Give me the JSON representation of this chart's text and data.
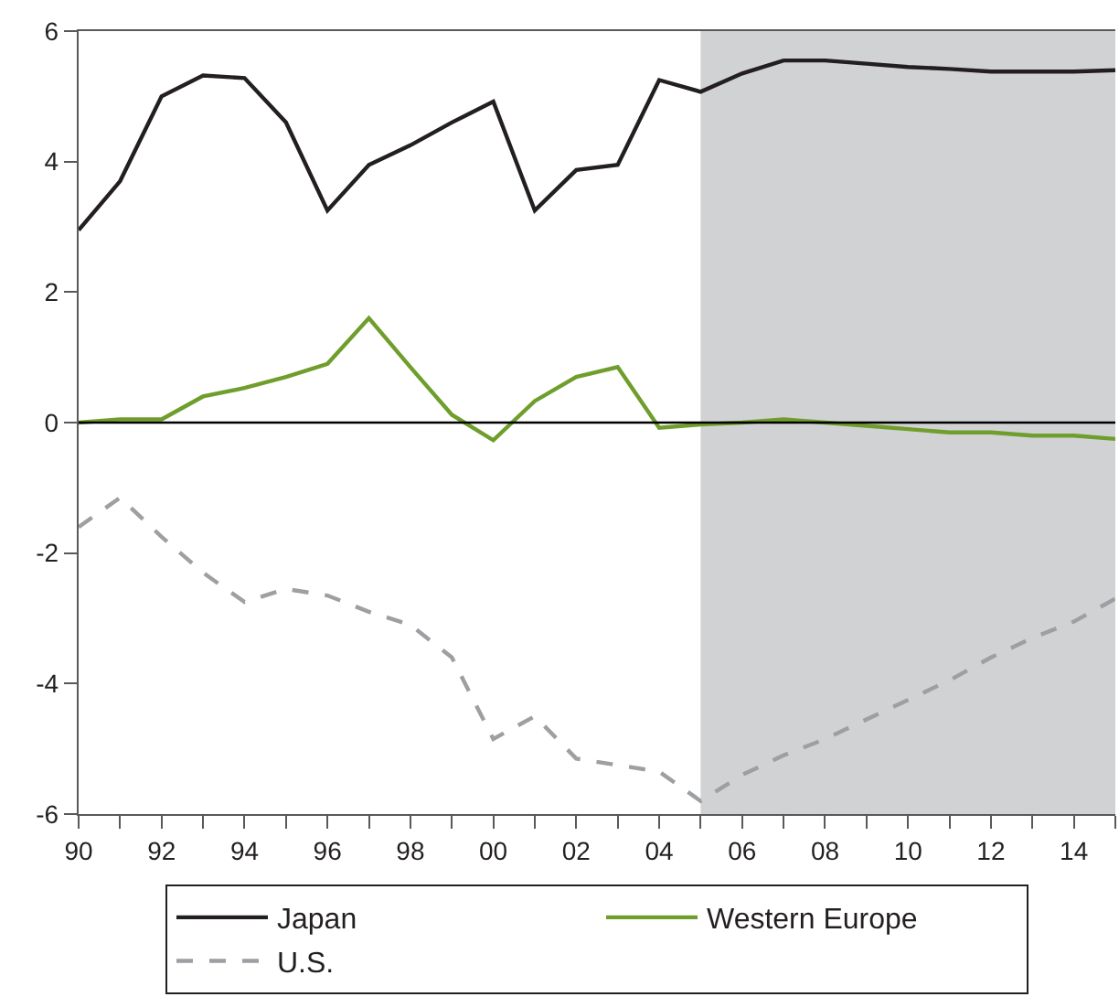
{
  "chart_data": {
    "type": "line",
    "x": [
      1990,
      1991,
      1992,
      1993,
      1994,
      1995,
      1996,
      1997,
      1998,
      1999,
      2000,
      2001,
      2002,
      2003,
      2004,
      2005,
      2006,
      2007,
      2008,
      2009,
      2010,
      2011,
      2012,
      2013,
      2014,
      2015
    ],
    "series": [
      {
        "name": "Japan",
        "color": "#231f20",
        "line_style": "solid",
        "values": [
          2.95,
          3.7,
          5.0,
          5.32,
          5.28,
          4.6,
          3.25,
          3.95,
          4.25,
          4.6,
          4.92,
          3.25,
          3.87,
          3.95,
          5.25,
          5.07,
          5.35,
          5.55,
          5.55,
          5.5,
          5.45,
          5.42,
          5.38,
          5.38,
          5.38,
          5.4
        ]
      },
      {
        "name": "Western Europe",
        "color": "#6f9e2c",
        "line_style": "solid",
        "values": [
          0,
          0.05,
          0.05,
          0.4,
          0.53,
          0.7,
          0.9,
          1.6,
          0.85,
          0.12,
          -0.27,
          0.33,
          0.7,
          0.85,
          -0.08,
          -0.03,
          0,
          0.05,
          0,
          -0.05,
          -0.1,
          -0.15,
          -0.15,
          -0.2,
          -0.2,
          -0.25
        ]
      },
      {
        "name": "U.S.",
        "color": "#9d9fa2",
        "line_style": "dashed",
        "values": [
          -1.6,
          -1.15,
          -1.75,
          -2.3,
          -2.75,
          -2.55,
          -2.65,
          -2.9,
          -3.1,
          -3.6,
          -4.85,
          -4.5,
          -5.15,
          -5.25,
          -5.35,
          -5.8,
          -5.4,
          -5.1,
          -4.85,
          -4.55,
          -4.25,
          -3.95,
          -3.6,
          -3.3,
          -3.05,
          -2.7
        ]
      }
    ],
    "xlim": [
      1990,
      2015
    ],
    "xticks": [
      {
        "value": 1990,
        "label": "90"
      },
      {
        "value": 1991,
        "label": null
      },
      {
        "value": 1992,
        "label": "92"
      },
      {
        "value": 1993,
        "label": null
      },
      {
        "value": 1994,
        "label": "94"
      },
      {
        "value": 1995,
        "label": null
      },
      {
        "value": 1996,
        "label": "96"
      },
      {
        "value": 1997,
        "label": null
      },
      {
        "value": 1998,
        "label": "98"
      },
      {
        "value": 1999,
        "label": null
      },
      {
        "value": 2000,
        "label": "00"
      },
      {
        "value": 2001,
        "label": null
      },
      {
        "value": 2002,
        "label": "02"
      },
      {
        "value": 2003,
        "label": null
      },
      {
        "value": 2004,
        "label": "04"
      },
      {
        "value": 2005,
        "label": null
      },
      {
        "value": 2006,
        "label": "06"
      },
      {
        "value": 2007,
        "label": null
      },
      {
        "value": 2008,
        "label": "08"
      },
      {
        "value": 2009,
        "label": null
      },
      {
        "value": 2010,
        "label": "10"
      },
      {
        "value": 2011,
        "label": null
      },
      {
        "value": 2012,
        "label": "12"
      },
      {
        "value": 2013,
        "label": null
      },
      {
        "value": 2014,
        "label": "14"
      },
      {
        "value": 2015,
        "label": null
      }
    ],
    "ylim": [
      -6,
      6
    ],
    "yticks": [
      -6,
      -4,
      -2,
      0,
      2,
      4,
      6
    ],
    "ref_lines": [
      {
        "axis": "y",
        "value": 0,
        "color": "#000000"
      }
    ],
    "bands": [
      {
        "axis": "x",
        "from": 2005,
        "to": 2015,
        "color": "#d1d2d4"
      }
    ],
    "grid": false,
    "legend": "bottom",
    "marker": "none"
  }
}
